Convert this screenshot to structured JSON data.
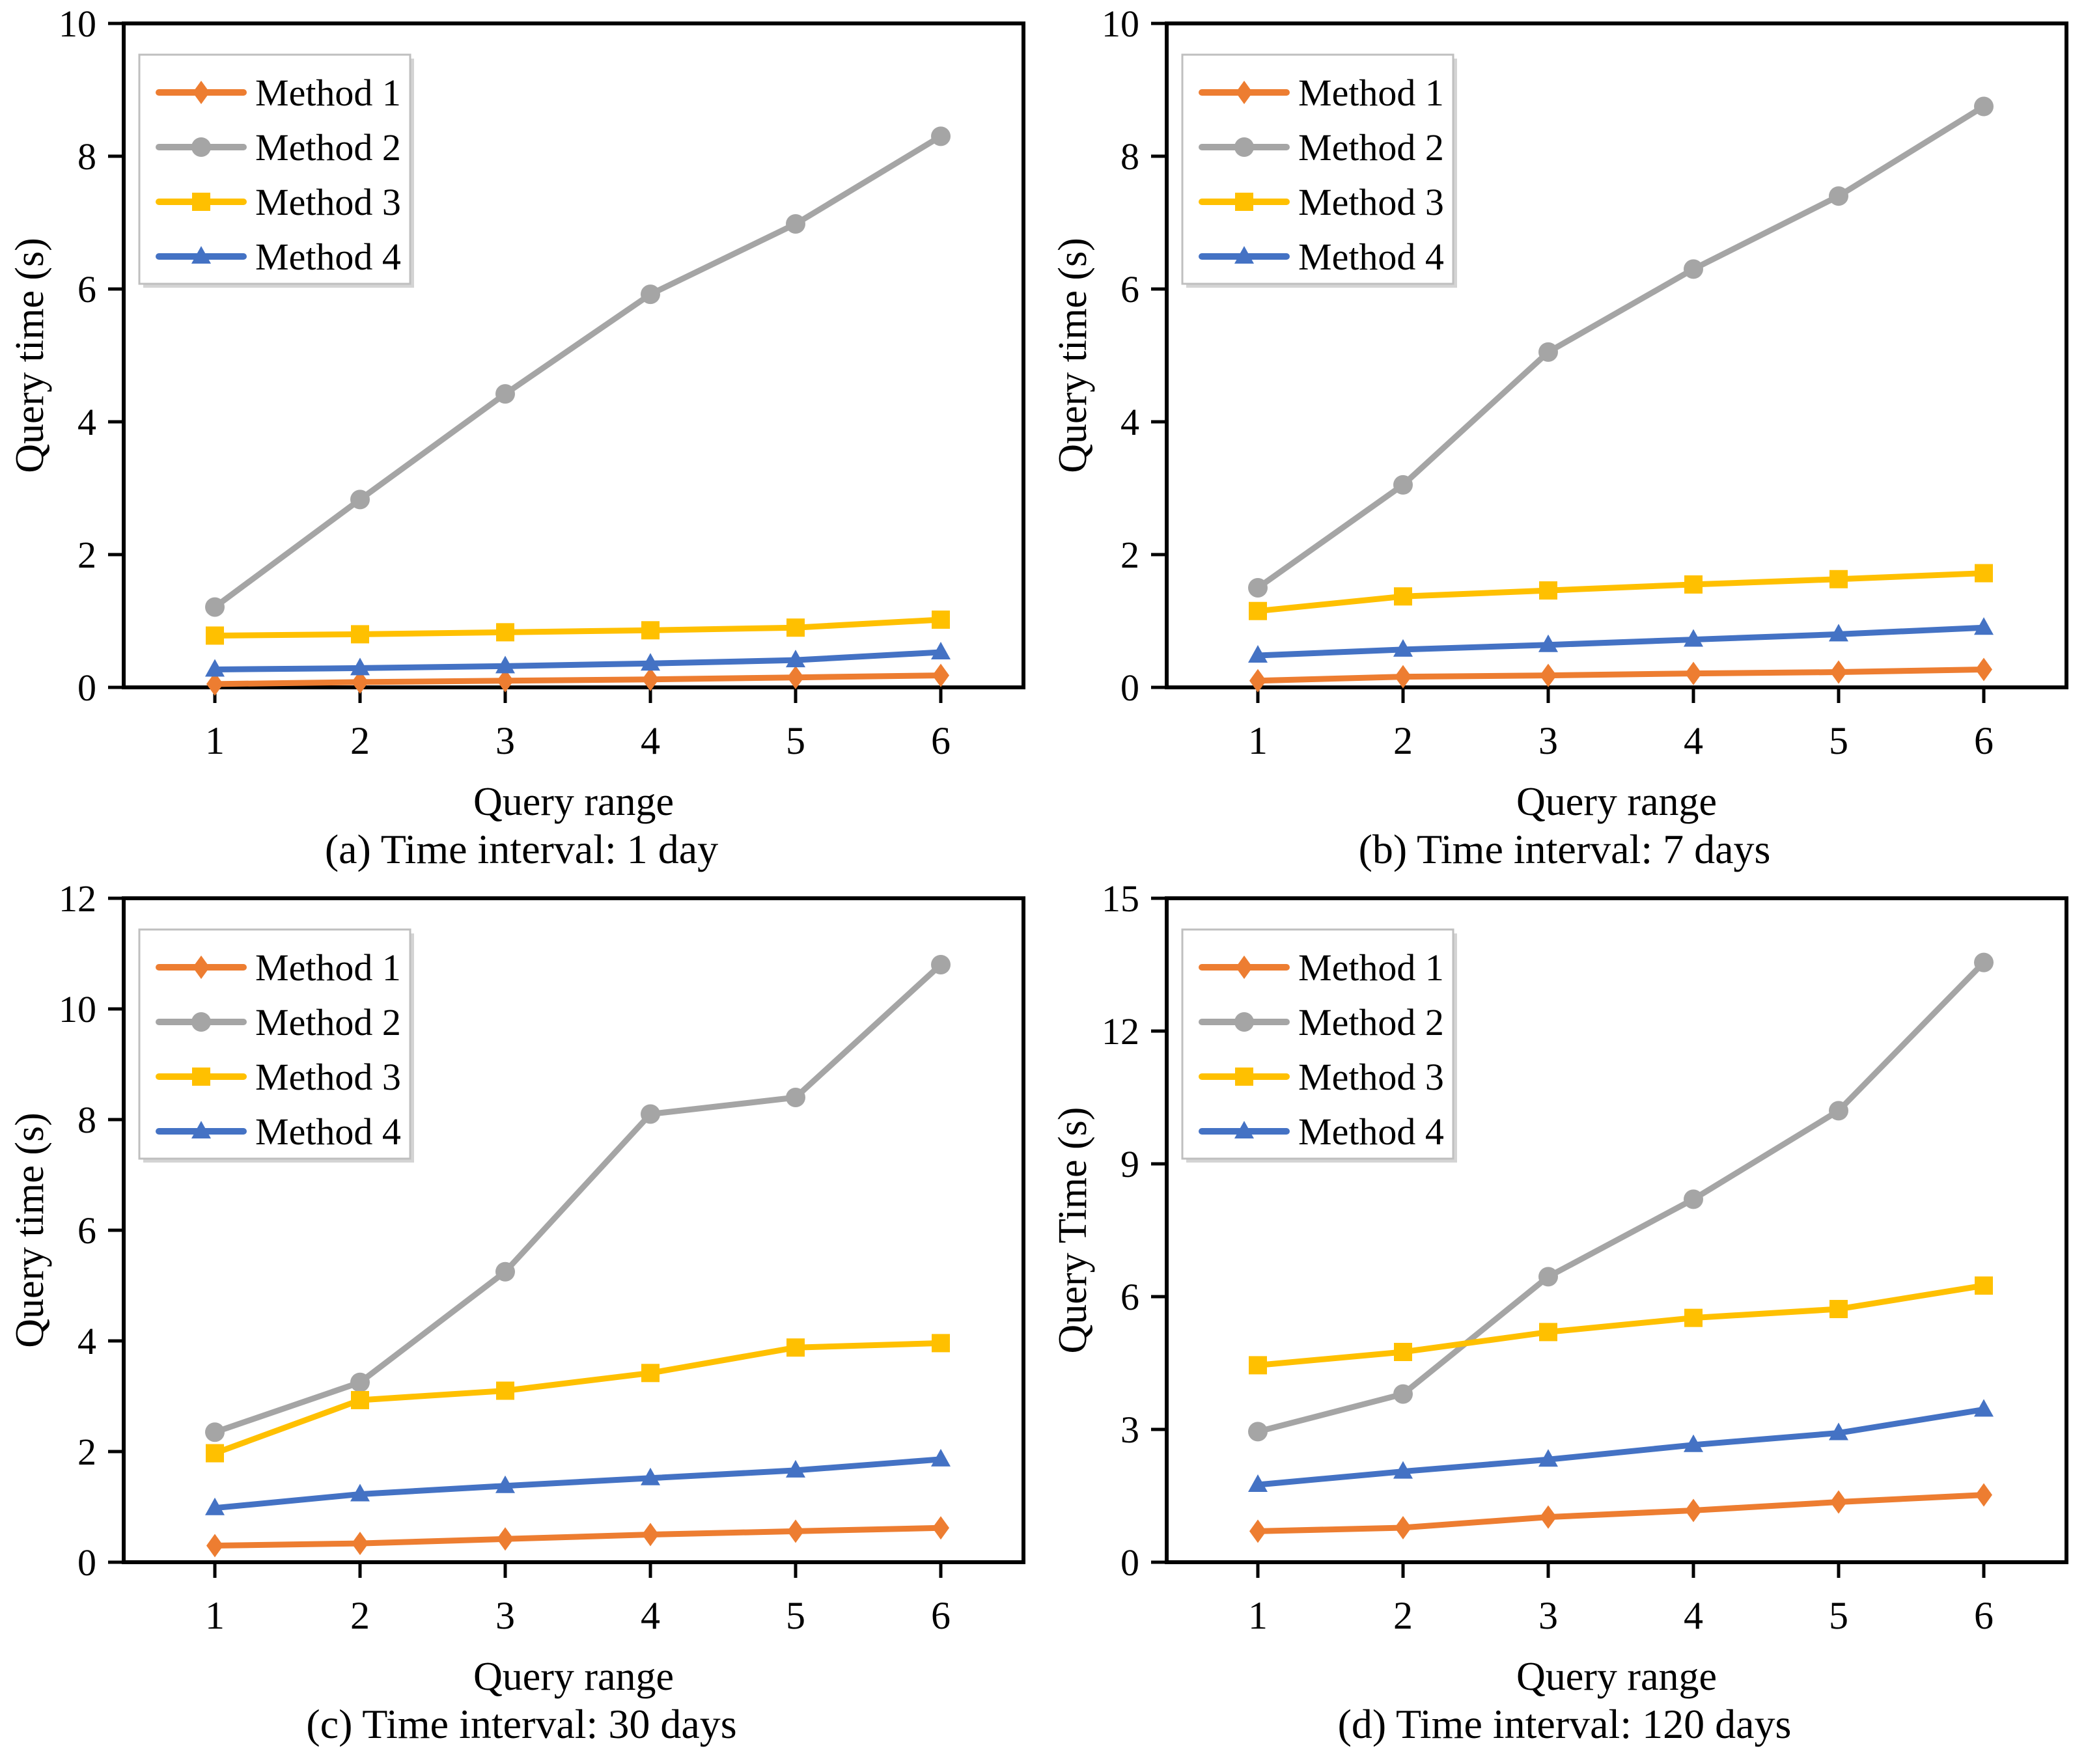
{
  "page": {
    "background": "#ffffff"
  },
  "chart_data": [
    {
      "type": "line",
      "panel": "a",
      "caption": "(a) Time interval: 1 day",
      "xlabel": "Query range",
      "ylabel": "Query time (s)",
      "x": [
        1,
        2,
        3,
        4,
        5,
        6
      ],
      "xticklabels": [
        "1",
        "2",
        "3",
        "4",
        "5",
        "6"
      ],
      "ylim": [
        0,
        10
      ],
      "yticks": [
        0,
        2,
        4,
        6,
        8,
        10
      ],
      "grid": false,
      "legend_position": "top-left",
      "series": [
        {
          "name": "Method 1",
          "color": "#ED7D31",
          "marker": "diamond",
          "values": [
            0.05,
            0.08,
            0.1,
            0.12,
            0.15,
            0.18
          ]
        },
        {
          "name": "Method 2",
          "color": "#A5A5A5",
          "marker": "circle",
          "values": [
            1.21,
            2.83,
            4.42,
            5.92,
            6.98,
            8.3
          ]
        },
        {
          "name": "Method 3",
          "color": "#FFC000",
          "marker": "square",
          "values": [
            0.78,
            0.8,
            0.83,
            0.86,
            0.9,
            1.02
          ]
        },
        {
          "name": "Method 4",
          "color": "#4472C4",
          "marker": "triangle",
          "values": [
            0.27,
            0.29,
            0.32,
            0.36,
            0.41,
            0.53
          ]
        }
      ]
    },
    {
      "type": "line",
      "panel": "b",
      "caption": "(b) Time interval: 7 days",
      "xlabel": "Query range",
      "ylabel": "Query time (s)",
      "x": [
        1,
        2,
        3,
        4,
        5,
        6
      ],
      "xticklabels": [
        "1",
        "2",
        "3",
        "4",
        "5",
        "6"
      ],
      "ylim": [
        0,
        10
      ],
      "yticks": [
        0,
        2,
        4,
        6,
        8,
        10
      ],
      "grid": false,
      "legend_position": "top-left",
      "series": [
        {
          "name": "Method 1",
          "color": "#ED7D31",
          "marker": "diamond",
          "values": [
            0.1,
            0.16,
            0.18,
            0.21,
            0.23,
            0.27
          ]
        },
        {
          "name": "Method 2",
          "color": "#A5A5A5",
          "marker": "circle",
          "values": [
            1.5,
            3.05,
            5.05,
            6.3,
            7.4,
            8.75
          ]
        },
        {
          "name": "Method 3",
          "color": "#FFC000",
          "marker": "square",
          "values": [
            1.15,
            1.37,
            1.46,
            1.55,
            1.63,
            1.72
          ]
        },
        {
          "name": "Method 4",
          "color": "#4472C4",
          "marker": "triangle",
          "values": [
            0.48,
            0.57,
            0.64,
            0.72,
            0.8,
            0.9
          ]
        }
      ]
    },
    {
      "type": "line",
      "panel": "c",
      "caption": "(c) Time interval: 30 days",
      "xlabel": "Query range",
      "ylabel": "Query time (s)",
      "x": [
        1,
        2,
        3,
        4,
        5,
        6
      ],
      "xticklabels": [
        "1",
        "2",
        "3",
        "4",
        "5",
        "6"
      ],
      "ylim": [
        0,
        12
      ],
      "yticks": [
        0,
        2,
        4,
        6,
        8,
        10,
        12
      ],
      "grid": false,
      "legend_position": "top-left",
      "series": [
        {
          "name": "Method 1",
          "color": "#ED7D31",
          "marker": "diamond",
          "values": [
            0.3,
            0.34,
            0.42,
            0.5,
            0.56,
            0.62
          ]
        },
        {
          "name": "Method 2",
          "color": "#A5A5A5",
          "marker": "circle",
          "values": [
            2.35,
            3.25,
            5.25,
            8.1,
            8.4,
            10.8
          ]
        },
        {
          "name": "Method 3",
          "color": "#FFC000",
          "marker": "square",
          "values": [
            1.97,
            2.93,
            3.1,
            3.42,
            3.88,
            3.96
          ]
        },
        {
          "name": "Method 4",
          "color": "#4472C4",
          "marker": "triangle",
          "values": [
            0.98,
            1.23,
            1.38,
            1.52,
            1.66,
            1.86
          ]
        }
      ]
    },
    {
      "type": "line",
      "panel": "d",
      "caption": "(d) Time interval: 120 days",
      "xlabel": "Query range",
      "ylabel": "Query Time (s)",
      "x": [
        1,
        2,
        3,
        4,
        5,
        6
      ],
      "xticklabels": [
        "1",
        "2",
        "3",
        "4",
        "5",
        "6"
      ],
      "ylim": [
        0,
        15
      ],
      "yticks": [
        0,
        3,
        6,
        9,
        12,
        15
      ],
      "grid": false,
      "legend_position": "top-left",
      "series": [
        {
          "name": "Method 1",
          "color": "#ED7D31",
          "marker": "diamond",
          "values": [
            0.7,
            0.78,
            1.02,
            1.17,
            1.36,
            1.52
          ]
        },
        {
          "name": "Method 2",
          "color": "#A5A5A5",
          "marker": "circle",
          "values": [
            2.95,
            3.8,
            6.45,
            8.2,
            10.2,
            13.55
          ]
        },
        {
          "name": "Method 3",
          "color": "#FFC000",
          "marker": "square",
          "values": [
            4.45,
            4.75,
            5.2,
            5.52,
            5.72,
            6.25
          ]
        },
        {
          "name": "Method 4",
          "color": "#4472C4",
          "marker": "triangle",
          "values": [
            1.75,
            2.05,
            2.32,
            2.65,
            2.92,
            3.45
          ]
        }
      ]
    }
  ],
  "style": {
    "axis_color": "#000000",
    "legend_border_color": "#bfbfbf",
    "legend_shadow_color": "#d4d4d4",
    "legend_background": "#ffffff"
  }
}
